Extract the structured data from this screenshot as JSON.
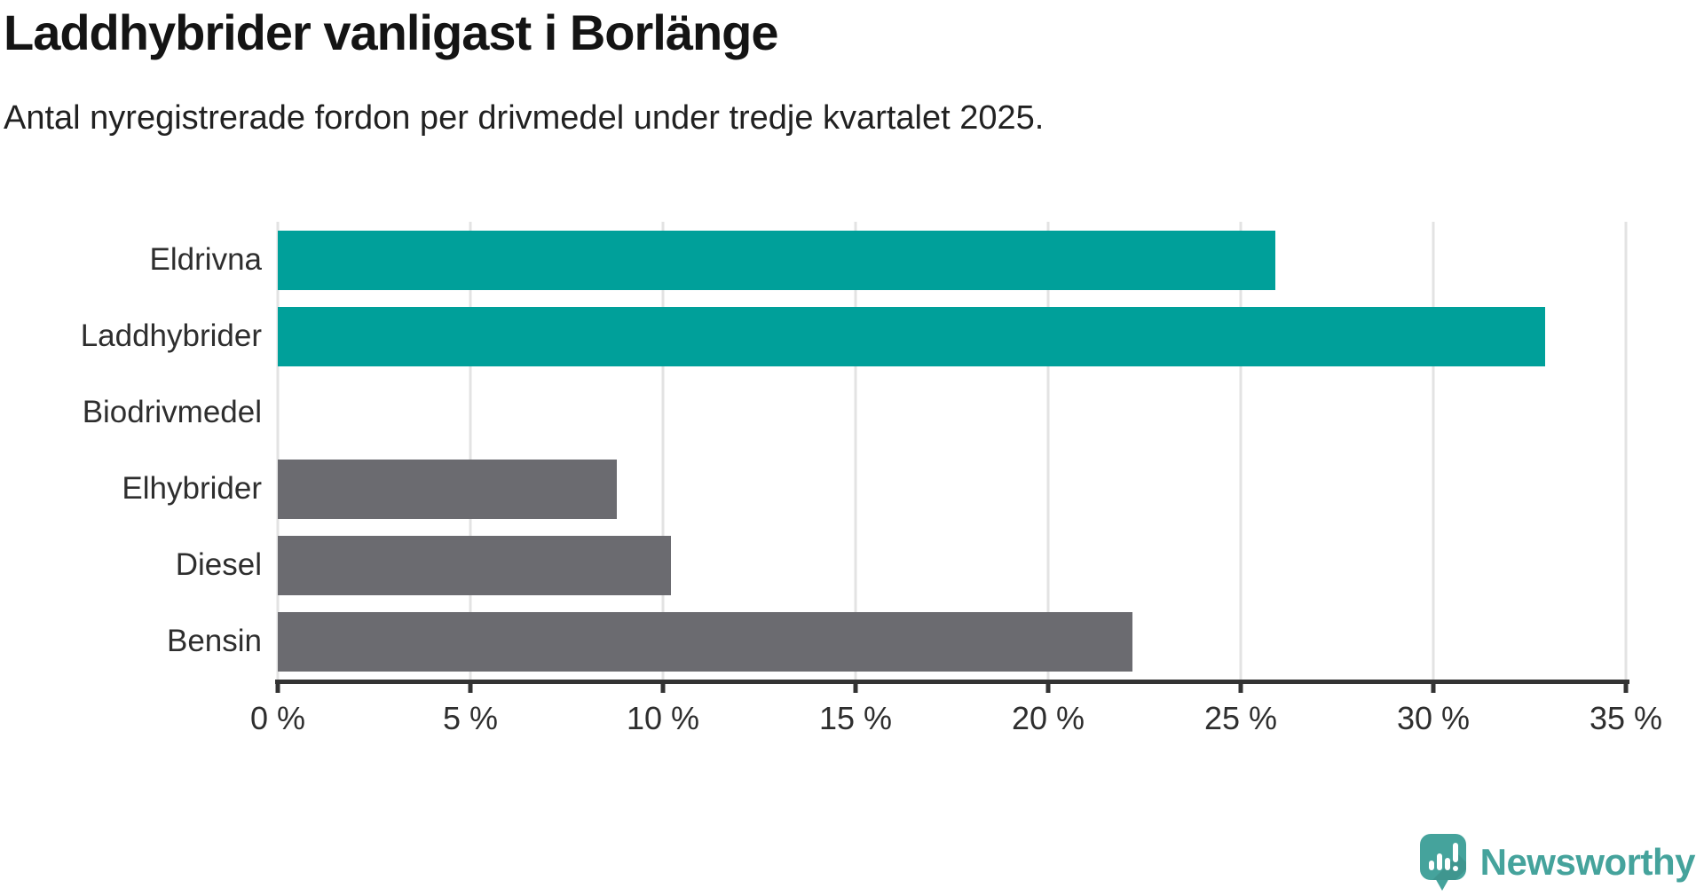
{
  "header": {
    "title": "Laddhybrider vanligast i Borlänge",
    "subtitle": "Antal nyregistrerade fordon per drivmedel under tredje kvartalet 2025."
  },
  "chart_data": {
    "type": "bar",
    "orientation": "horizontal",
    "title": "Laddhybrider vanligast i Borlänge",
    "subtitle": "Antal nyregistrerade fordon per drivmedel under tredje kvartalet 2025.",
    "categories": [
      "Eldrivna",
      "Laddhybrider",
      "Biodrivmedel",
      "Elhybrider",
      "Diesel",
      "Bensin"
    ],
    "values": [
      25.9,
      32.9,
      0,
      8.8,
      10.2,
      22.2
    ],
    "unit": "%",
    "xlim": [
      0,
      35
    ],
    "xticks": [
      0,
      5,
      10,
      15,
      20,
      25,
      30,
      35
    ],
    "xtick_labels": [
      "0 %",
      "5 %",
      "10 %",
      "15 %",
      "20 %",
      "25 %",
      "30 %",
      "35 %"
    ],
    "bar_colors": [
      "#00A09A",
      "#00A09A",
      "#6B6B70",
      "#6B6B70",
      "#6B6B70",
      "#6B6B70"
    ],
    "highlight_color": "#00A09A",
    "default_color": "#6B6B70",
    "grid": true,
    "grid_color": "#E3E3E3",
    "axis_color": "#333333",
    "legend": false,
    "xlabel": "",
    "ylabel": ""
  },
  "footer": {
    "brand": "Newsworthy",
    "brand_color": "#45A39C",
    "logo_icon": "newsworthy-speech-bubble-chart-icon"
  }
}
